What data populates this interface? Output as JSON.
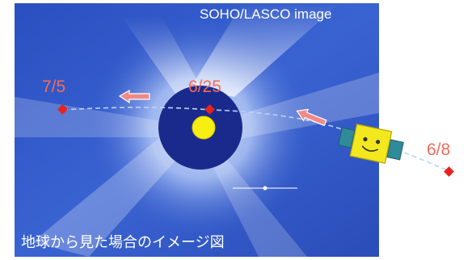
{
  "image_credit": "SOHO/LASCO image",
  "caption": "地球から見た場合のイメージ図",
  "dates": {
    "left": "7/5",
    "center": "6/25",
    "right": "6/8"
  },
  "colors": {
    "sky": "#3057c8",
    "occulter_disk": "#1a2a8c",
    "sun": "#f7ee12",
    "marker": "#e8231d",
    "date_label": "#f26b5b",
    "arrow": "#f08a86",
    "orbit_path": "#b9d3f2",
    "spacecraft_body": "#f3e81e",
    "solar_panel": "#2f8a9a"
  },
  "icons": {
    "spacecraft": "spacecraft-smiley-icon",
    "sun": "sun-icon",
    "marker": "diamond-marker-icon",
    "arrow": "left-arrow-icon"
  }
}
